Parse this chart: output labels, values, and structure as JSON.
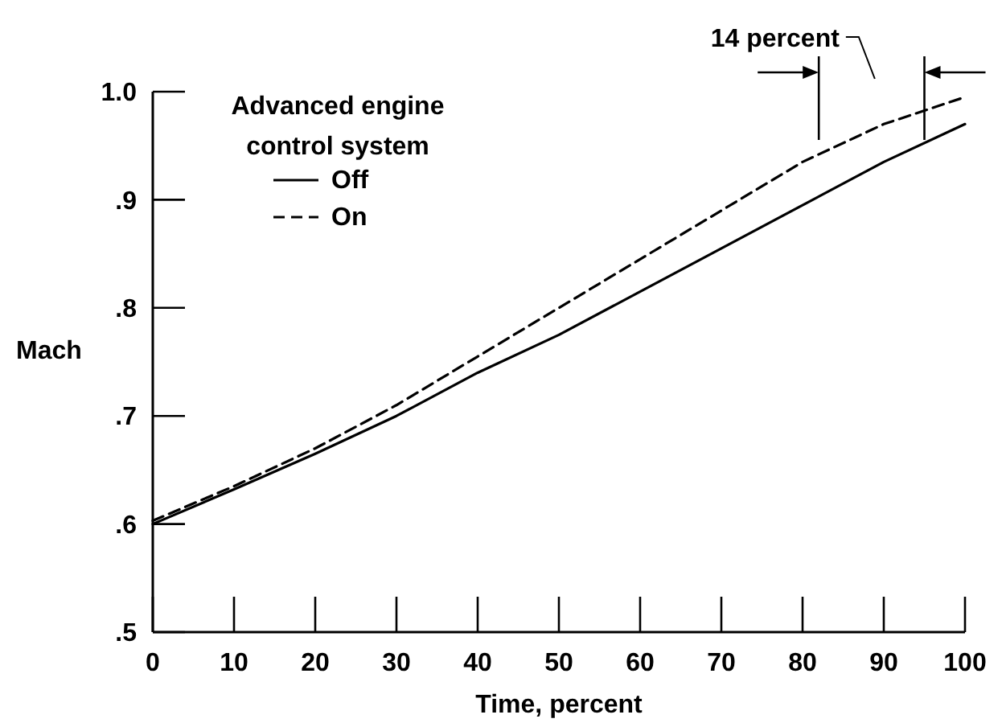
{
  "chart_data": {
    "type": "line",
    "xlabel": "Time, percent",
    "ylabel": "Mach",
    "legend_title": "Advanced engine control system",
    "legend": "top left",
    "x": [
      0,
      10,
      20,
      30,
      40,
      50,
      60,
      70,
      80,
      90,
      100
    ],
    "series": [
      {
        "name": "Off",
        "color": "#000000",
        "line_style": "solid",
        "values": [
          0.6,
          0.632,
          0.665,
          0.7,
          0.74,
          0.775,
          0.815,
          0.855,
          0.895,
          0.935,
          0.97
        ]
      },
      {
        "name": "On",
        "color": "#000000",
        "line_style": "dashed",
        "values": [
          0.603,
          0.635,
          0.67,
          0.71,
          0.755,
          0.8,
          0.845,
          0.89,
          0.935,
          0.97,
          0.995
        ]
      }
    ],
    "ref_lines": [
      {
        "axis": "x",
        "value": 82
      },
      {
        "axis": "x",
        "value": 95
      }
    ],
    "annotations": [
      "14 percent"
    ],
    "xlim": [
      0,
      100
    ],
    "xticks": [
      0,
      10,
      20,
      30,
      40,
      50,
      60,
      70,
      80,
      90,
      100
    ],
    "ylim": [
      0.5,
      1.0
    ],
    "yticks": [
      {
        "value": 0.5,
        "label": ".5"
      },
      {
        "value": 0.6,
        "label": ".6"
      },
      {
        "value": 0.7,
        "label": ".7"
      },
      {
        "value": 0.8,
        "label": ".8"
      },
      {
        "value": 0.9,
        "label": ".9"
      },
      {
        "value": 1.0,
        "label": "1.0"
      }
    ],
    "grid": false
  }
}
